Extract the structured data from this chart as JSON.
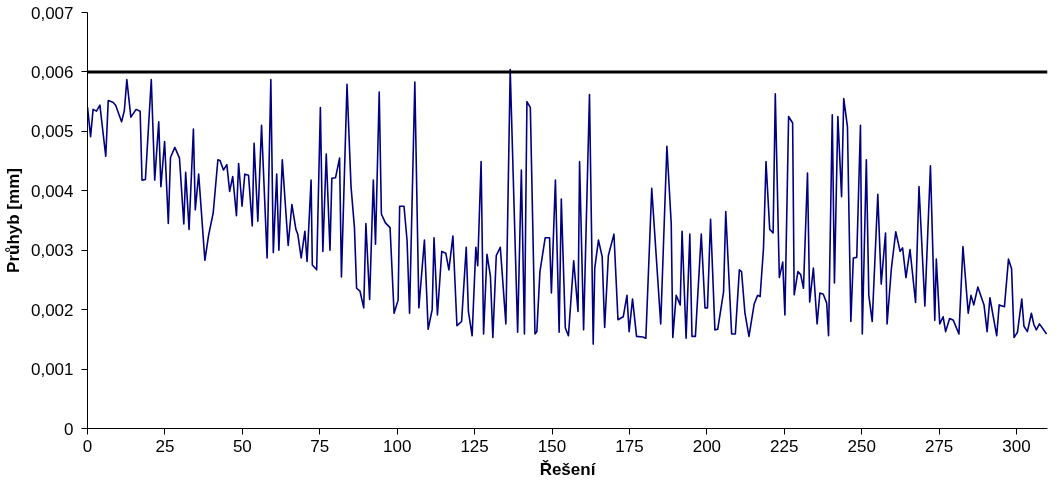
{
  "chart_data": {
    "type": "line",
    "xlabel": "Řešení",
    "ylabel": "Průhyb [mm]",
    "xlim": [
      0,
      310
    ],
    "xticks": [
      0,
      25,
      50,
      75,
      100,
      125,
      150,
      175,
      200,
      225,
      250,
      275,
      300
    ],
    "ylim": [
      0,
      0.007
    ],
    "yticks": [
      {
        "value": 0,
        "label": "0"
      },
      {
        "value": 0.001,
        "label": "0,001"
      },
      {
        "value": 0.002,
        "label": "0,002"
      },
      {
        "value": 0.003,
        "label": "0,003"
      },
      {
        "value": 0.004,
        "label": "0,004"
      },
      {
        "value": 0.005,
        "label": "0,005"
      },
      {
        "value": 0.006,
        "label": "0,006"
      },
      {
        "value": 0.007,
        "label": "0,007"
      }
    ],
    "grid": false,
    "marker": "none",
    "line_style": "solid",
    "ref_lines": [
      {
        "axis": "y",
        "value": 0.006,
        "color": "#000000"
      }
    ],
    "series": [
      {
        "color": "#000080",
        "x": [
          0,
          1,
          1.8,
          2.9,
          4,
          5.9,
          6.7,
          8.2,
          9.1,
          9.9,
          11,
          11.9,
          12.7,
          14,
          15.7,
          17,
          17.6,
          18.7,
          20.6,
          21.7,
          23,
          23.7,
          24.9,
          26.1,
          26.8,
          28.2,
          29.7,
          31.1,
          31.7,
          32.8,
          34.2,
          34.8,
          35.9,
          37.9,
          39.1,
          40.6,
          42.1,
          42.8,
          43.9,
          45,
          45.9,
          46.9,
          48.1,
          48.8,
          49.9,
          50.8,
          52,
          53.2,
          53.8,
          55,
          56.2,
          58,
          59.2,
          60,
          61.1,
          61.8,
          62.9,
          64.8,
          66,
          67.3,
          67.9,
          69,
          70.2,
          70.9,
          72.2,
          72.6,
          74,
          75.2,
          76,
          77.1,
          78.3,
          78.9,
          80.1,
          81.4,
          82,
          83.8,
          85.1,
          86.2,
          86.9,
          88,
          89.2,
          89.9,
          91.1,
          92.3,
          93,
          94.2,
          94.9,
          96.2,
          97.7,
          99,
          100.3,
          100.8,
          102.2,
          103.2,
          104,
          105.7,
          107,
          108.8,
          110,
          111.3,
          111.9,
          113,
          114.4,
          115.7,
          116.7,
          118,
          119.3,
          120.8,
          122.3,
          123,
          124.2,
          125.4,
          126,
          127.1,
          127.9,
          129,
          130.1,
          130.9,
          132,
          133.3,
          135.1,
          136.5,
          138.9,
          140.1,
          141.1,
          141.9,
          143,
          144.5,
          145.1,
          146.1,
          147.8,
          149.2,
          149.8,
          151.1,
          152.3,
          153,
          154.3,
          155.3,
          157,
          158.4,
          158.9,
          160.2,
          162.1,
          163.3,
          163.8,
          165,
          166.2,
          167,
          168.2,
          170,
          171.3,
          173,
          174.2,
          174.9,
          176,
          177.3,
          179.3,
          180.3,
          182.2,
          185.1,
          187.1,
          188.5,
          189,
          190.1,
          191.4,
          192,
          193.3,
          194.5,
          195.2,
          196.3,
          198.2,
          199.4,
          200.2,
          201.2,
          202.6,
          203.5,
          205.4,
          206.1,
          208,
          209.2,
          210.5,
          211.2,
          212.3,
          213.6,
          215.3,
          216.4,
          217.2,
          218.3,
          219.1,
          220.3,
          221.4,
          222.1,
          223.4,
          224.5,
          225.2,
          226.4,
          227.7,
          228.2,
          229.4,
          230.3,
          231.2,
          232.5,
          233.2,
          234.4,
          235.6,
          236.5,
          237.6,
          238.7,
          239.3,
          240.5,
          241.2,
          242.3,
          243.5,
          244.2,
          245.4,
          246.5,
          247.3,
          248.4,
          249.6,
          250.2,
          251.5,
          252.3,
          253.4,
          255.2,
          256.3,
          257.7,
          258.2,
          259.6,
          261,
          262.4,
          263.2,
          264.3,
          265.6,
          267.4,
          268.5,
          270.4,
          272.2,
          273.6,
          274.1,
          275.2,
          276.3,
          277.1,
          278.4,
          279.6,
          281.4,
          282.7,
          284.4,
          285.3,
          286.2,
          287.5,
          289.5,
          290.5,
          291.4,
          293.6,
          294.4,
          296.1,
          297.4,
          298.4,
          299.2,
          300.3,
          301.7,
          302.4,
          303.5,
          304.8,
          305.6,
          306.4,
          307.4,
          309.7
        ],
        "values": [
          0.00541,
          0.00491,
          0.00537,
          0.00534,
          0.00544,
          0.00458,
          0.00552,
          0.00549,
          0.00544,
          0.00532,
          0.00516,
          0.00535,
          0.00587,
          0.00524,
          0.00537,
          0.00534,
          0.00418,
          0.00419,
          0.00587,
          0.00418,
          0.00516,
          0.00407,
          0.00483,
          0.00345,
          0.00456,
          0.00473,
          0.00455,
          0.00344,
          0.00431,
          0.00335,
          0.00504,
          0.00368,
          0.00428,
          0.00283,
          0.00325,
          0.00363,
          0.00452,
          0.00451,
          0.00435,
          0.00444,
          0.00399,
          0.00424,
          0.00358,
          0.00446,
          0.00374,
          0.00428,
          0.00426,
          0.00341,
          0.0048,
          0.00349,
          0.0051,
          0.00287,
          0.00587,
          0.00296,
          0.00428,
          0.003,
          0.00452,
          0.00308,
          0.00377,
          0.00335,
          0.00327,
          0.00287,
          0.00332,
          0.00281,
          0.00418,
          0.00275,
          0.00267,
          0.0054,
          0.00298,
          0.00462,
          0.003,
          0.00421,
          0.00422,
          0.00455,
          0.00255,
          0.00579,
          0.00407,
          0.00338,
          0.00236,
          0.00231,
          0.00203,
          0.00345,
          0.00217,
          0.00418,
          0.0031,
          0.00566,
          0.00361,
          0.00346,
          0.00338,
          0.00194,
          0.00216,
          0.00374,
          0.00374,
          0.00316,
          0.00194,
          0.00583,
          0.00203,
          0.00317,
          0.00167,
          0.002,
          0.00321,
          0.00191,
          0.00298,
          0.00295,
          0.00267,
          0.00324,
          0.00173,
          0.0018,
          0.00305,
          0.00197,
          0.00156,
          0.00305,
          0.00274,
          0.00449,
          0.00159,
          0.00293,
          0.00257,
          0.00153,
          0.00291,
          0.00305,
          0.00176,
          0.00604,
          0.00162,
          0.00435,
          0.00159,
          0.0055,
          0.0054,
          0.00159,
          0.00163,
          0.00264,
          0.00321,
          0.00321,
          0.00228,
          0.00418,
          0.00162,
          0.00386,
          0.00169,
          0.00156,
          0.00282,
          0.00197,
          0.00449,
          0.00166,
          0.00562,
          0.00142,
          0.0027,
          0.00317,
          0.00289,
          0.0017,
          0.00291,
          0.00327,
          0.00183,
          0.00188,
          0.00224,
          0.00163,
          0.00218,
          0.00155,
          0.00154,
          0.00152,
          0.00404,
          0.00176,
          0.00475,
          0.00344,
          0.00153,
          0.00224,
          0.00208,
          0.00332,
          0.00152,
          0.00327,
          0.00155,
          0.00155,
          0.00327,
          0.00203,
          0.00203,
          0.00352,
          0.00166,
          0.00167,
          0.0023,
          0.00365,
          0.00159,
          0.00159,
          0.00267,
          0.00264,
          0.00194,
          0.00155,
          0.0021,
          0.00224,
          0.00222,
          0.00304,
          0.00449,
          0.00335,
          0.00329,
          0.00563,
          0.00254,
          0.0028,
          0.00191,
          0.00525,
          0.00514,
          0.00225,
          0.00264,
          0.00259,
          0.00236,
          0.0043,
          0.00213,
          0.0027,
          0.00176,
          0.00228,
          0.00226,
          0.00211,
          0.00156,
          0.00528,
          0.00245,
          0.00525,
          0.0039,
          0.00555,
          0.00508,
          0.0018,
          0.00287,
          0.00288,
          0.0051,
          0.00159,
          0.00452,
          0.00224,
          0.0018,
          0.00394,
          0.00243,
          0.00329,
          0.00176,
          0.0027,
          0.00331,
          0.00298,
          0.00304,
          0.00254,
          0.00301,
          0.00212,
          0.00407,
          0.00206,
          0.00442,
          0.00182,
          0.00285,
          0.00176,
          0.00188,
          0.00163,
          0.00185,
          0.00182,
          0.00159,
          0.00306,
          0.00194,
          0.00224,
          0.00208,
          0.00238,
          0.00208,
          0.00163,
          0.0022,
          0.00156,
          0.00208,
          0.00205,
          0.00285,
          0.00269,
          0.00153,
          0.00162,
          0.00218,
          0.00172,
          0.00163,
          0.00194,
          0.00175,
          0.00166,
          0.00176,
          0.00159
        ]
      }
    ]
  }
}
